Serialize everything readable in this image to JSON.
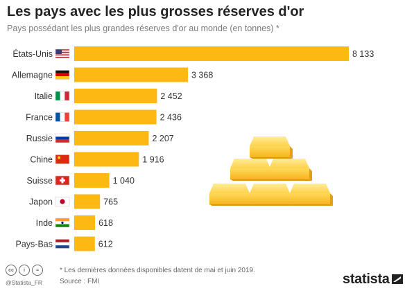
{
  "title": "Les pays avec les plus grosses réserves d'or",
  "subtitle": "Pays possédant les plus grandes réserves d'or au monde (en tonnes) *",
  "colors": {
    "bar": "#FDB813",
    "text": "#333333"
  },
  "chart_data": {
    "type": "bar",
    "orientation": "horizontal",
    "title": "Les pays avec les plus grosses réserves d'or",
    "subtitle": "Pays possédant les plus grandes réserves d'or au monde (en tonnes) *",
    "categories": [
      "États-Unis",
      "Allemagne",
      "Italie",
      "France",
      "Russie",
      "Chine",
      "Suisse",
      "Japon",
      "Inde",
      "Pays-Bas"
    ],
    "values": [
      8133,
      3368,
      2452,
      2436,
      2207,
      1916,
      1040,
      765,
      618,
      612
    ],
    "value_labels": [
      "8 133",
      "3 368",
      "2 452",
      "2 436",
      "2 207",
      "1 916",
      "1 040",
      "765",
      "618",
      "612"
    ],
    "flags": [
      "us-flag-icon",
      "de-flag-icon",
      "it-flag-icon",
      "fr-flag-icon",
      "ru-flag-icon",
      "cn-flag-icon",
      "ch-flag-icon",
      "jp-flag-icon",
      "in-flag-icon",
      "nl-flag-icon"
    ],
    "xlim": [
      0,
      8133
    ],
    "grid": false,
    "xlabel": "",
    "ylabel": ""
  },
  "footer": {
    "note": "* Les dernières données disponibles datent de mai et juin 2019.",
    "source": "Source : FMI",
    "handle": "@Statista_FR",
    "brand": "statista",
    "license_icons": [
      "cc-icon",
      "by-icon",
      "nd-icon"
    ],
    "license_glyphs": [
      "cc",
      "i",
      "="
    ]
  }
}
